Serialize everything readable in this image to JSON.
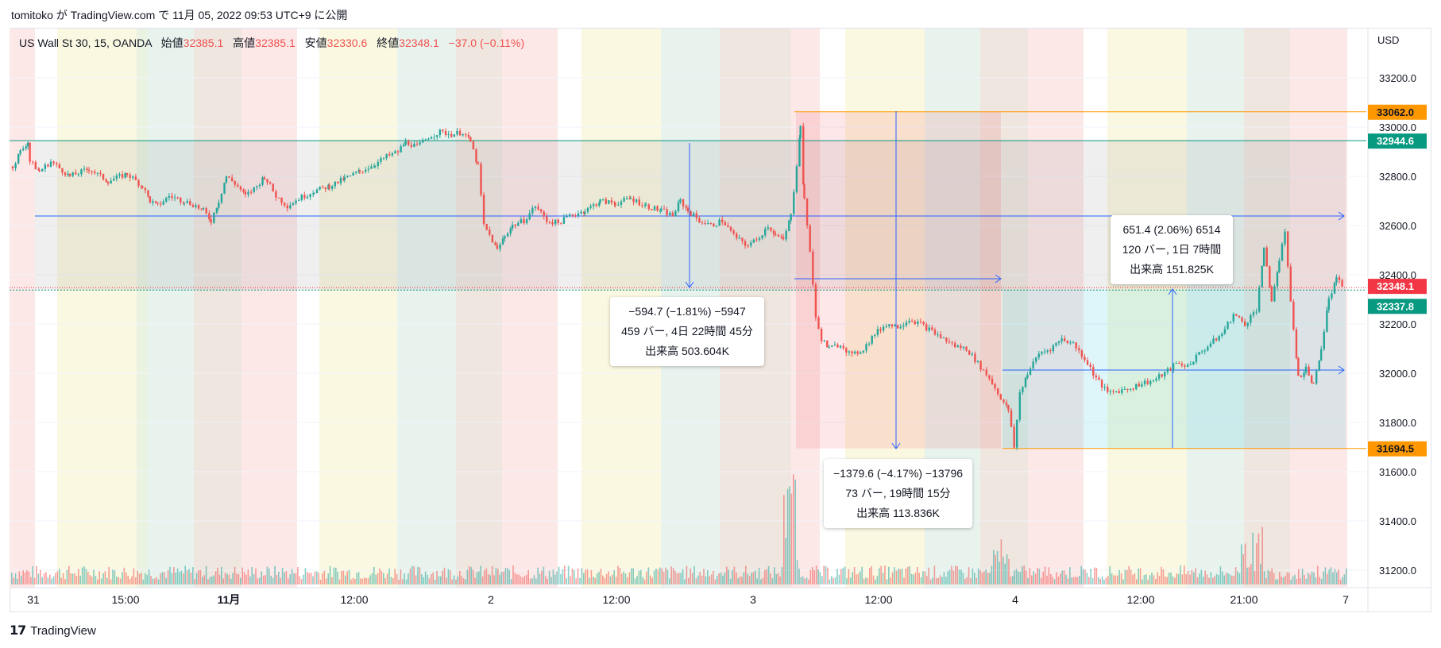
{
  "header": {
    "published": "tomitoko が TradingView.com で 11月 05, 2022 09:53 UTC+9 に公開"
  },
  "legend": {
    "symbol": "US Wall St 30, 15, OANDA",
    "open_label": "始値",
    "open": "32385.1",
    "high_label": "高値",
    "high": "32385.1",
    "low_label": "安値",
    "low": "32330.6",
    "close_label": "終値",
    "close": "32348.1",
    "change": "−37.0 (−0.11%)"
  },
  "footer": {
    "brand": "TradingView"
  },
  "measurements": [
    {
      "line1": "−594.7 (−1.81%) −5947",
      "line2": "459 バー, 4日 22時間 45分",
      "line3": "出来高 503.604K"
    },
    {
      "line1": "−1379.6 (−4.17%) −13796",
      "line2": "73 バー, 19時間 15分",
      "line3": "出来高 113.836K"
    },
    {
      "line1": "651.4 (2.06%) 6514",
      "line2": "120 バー, 1日 7時間",
      "line3": "出来高 151.825K"
    }
  ],
  "colors": {
    "up": "#26a69a",
    "down": "#ef5350",
    "orange": "#ff9800",
    "blue": "#2962ff",
    "teal_label": "#089981",
    "red_label": "#f23645"
  },
  "chart_data": {
    "type": "candlestick",
    "symbol": "US Wall St 30",
    "interval": "15",
    "currency": "USD",
    "y_ticks": [
      33200,
      33000,
      32800,
      32600,
      32400,
      32200,
      32000,
      31800,
      31600,
      31400,
      31200
    ],
    "ylim": [
      31130,
      33450
    ],
    "x_ticks": [
      "31",
      "15:00",
      "11月",
      "12:00",
      "2",
      "12:00",
      "3",
      "12:00",
      "4",
      "12:00",
      "21:00",
      "7"
    ],
    "price_labels": [
      {
        "value": "33062.0",
        "color": "#ff9800"
      },
      {
        "value": "32944.6",
        "color": "#089981"
      },
      {
        "value": "32348.1",
        "color": "#f23645"
      },
      {
        "value": "32337.8",
        "color": "#089981"
      },
      {
        "value": "31694.5",
        "color": "#ff9800"
      }
    ],
    "close_series": [
      [
        0,
        32840
      ],
      [
        4,
        32900
      ],
      [
        8,
        32940
      ],
      [
        9,
        32860
      ],
      [
        14,
        32820
      ],
      [
        20,
        32860
      ],
      [
        30,
        32800
      ],
      [
        40,
        32830
      ],
      [
        50,
        32780
      ],
      [
        60,
        32810
      ],
      [
        68,
        32760
      ],
      [
        72,
        32700
      ],
      [
        76,
        32680
      ],
      [
        82,
        32720
      ],
      [
        90,
        32700
      ],
      [
        96,
        32680
      ],
      [
        100,
        32660
      ],
      [
        104,
        32620
      ],
      [
        108,
        32700
      ],
      [
        112,
        32800
      ],
      [
        118,
        32760
      ],
      [
        122,
        32720
      ],
      [
        128,
        32760
      ],
      [
        132,
        32800
      ],
      [
        138,
        32720
      ],
      [
        144,
        32680
      ],
      [
        150,
        32710
      ],
      [
        158,
        32740
      ],
      [
        166,
        32760
      ],
      [
        174,
        32790
      ],
      [
        182,
        32820
      ],
      [
        190,
        32850
      ],
      [
        196,
        32880
      ],
      [
        202,
        32900
      ],
      [
        206,
        32940
      ],
      [
        212,
        32920
      ],
      [
        218,
        32960
      ],
      [
        224,
        32980
      ],
      [
        230,
        32970
      ],
      [
        236,
        32980
      ],
      [
        240,
        32940
      ],
      [
        244,
        32840
      ],
      [
        247,
        32600
      ],
      [
        250,
        32560
      ],
      [
        254,
        32500
      ],
      [
        258,
        32560
      ],
      [
        262,
        32600
      ],
      [
        268,
        32620
      ],
      [
        274,
        32680
      ],
      [
        280,
        32620
      ],
      [
        286,
        32610
      ],
      [
        292,
        32640
      ],
      [
        300,
        32660
      ],
      [
        308,
        32700
      ],
      [
        316,
        32690
      ],
      [
        324,
        32710
      ],
      [
        332,
        32680
      ],
      [
        340,
        32660
      ],
      [
        346,
        32640
      ],
      [
        350,
        32700
      ],
      [
        354,
        32660
      ],
      [
        360,
        32620
      ],
      [
        366,
        32600
      ],
      [
        372,
        32620
      ],
      [
        378,
        32560
      ],
      [
        384,
        32520
      ],
      [
        390,
        32540
      ],
      [
        396,
        32600
      ],
      [
        400,
        32560
      ],
      [
        404,
        32540
      ],
      [
        408,
        32640
      ],
      [
        411,
        32850
      ],
      [
        413,
        33000
      ],
      [
        415,
        32700
      ],
      [
        418,
        32500
      ],
      [
        421,
        32220
      ],
      [
        424,
        32140
      ],
      [
        428,
        32100
      ],
      [
        434,
        32120
      ],
      [
        440,
        32070
      ],
      [
        446,
        32100
      ],
      [
        452,
        32160
      ],
      [
        458,
        32200
      ],
      [
        464,
        32190
      ],
      [
        470,
        32220
      ],
      [
        476,
        32200
      ],
      [
        482,
        32170
      ],
      [
        488,
        32140
      ],
      [
        494,
        32110
      ],
      [
        500,
        32100
      ],
      [
        506,
        32040
      ],
      [
        512,
        31980
      ],
      [
        518,
        31900
      ],
      [
        522,
        31850
      ],
      [
        525,
        31700
      ],
      [
        528,
        31920
      ],
      [
        532,
        32000
      ],
      [
        538,
        32080
      ],
      [
        544,
        32100
      ],
      [
        550,
        32140
      ],
      [
        556,
        32120
      ],
      [
        562,
        32060
      ],
      [
        568,
        31980
      ],
      [
        574,
        31920
      ],
      [
        580,
        31930
      ],
      [
        586,
        31940
      ],
      [
        592,
        31960
      ],
      [
        598,
        31970
      ],
      [
        604,
        32000
      ],
      [
        610,
        32040
      ],
      [
        616,
        32030
      ],
      [
        622,
        32080
      ],
      [
        628,
        32120
      ],
      [
        634,
        32160
      ],
      [
        640,
        32240
      ],
      [
        646,
        32200
      ],
      [
        652,
        32260
      ],
      [
        656,
        32500
      ],
      [
        660,
        32300
      ],
      [
        664,
        32450
      ],
      [
        667,
        32580
      ],
      [
        670,
        32300
      ],
      [
        674,
        31980
      ],
      [
        678,
        32020
      ],
      [
        682,
        31950
      ],
      [
        686,
        32100
      ],
      [
        690,
        32300
      ],
      [
        694,
        32380
      ],
      [
        698,
        32348
      ]
    ]
  }
}
